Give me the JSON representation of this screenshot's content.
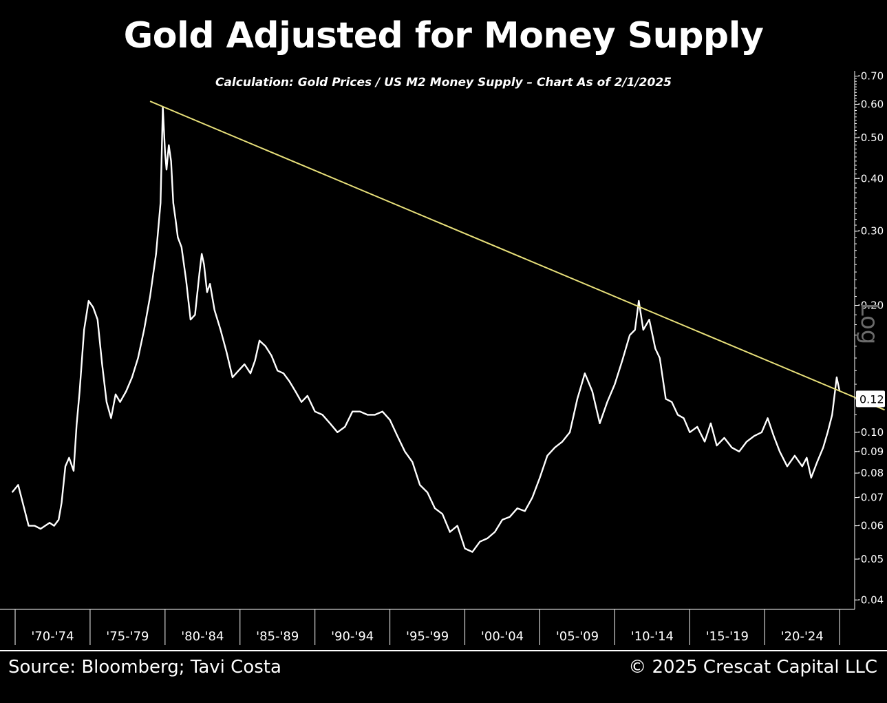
{
  "title": "Gold Adjusted for Money Supply",
  "subtitle": "Calculation: Gold Prices / US M2 Money Supply – Chart As of 2/1/2025",
  "footer": {
    "source": "Source: Bloomberg; Tavi Costa",
    "copyright": "© 2025 Crescat Capital LLC"
  },
  "colors": {
    "background": "#000000",
    "series": "#ffffff",
    "trendline": "#e8e07a"
  },
  "chart_data": {
    "type": "line",
    "title": "Gold Adjusted for Money Supply",
    "subtitle": "Calculation: Gold Prices / US M2 Money Supply – Chart As of 2/1/2025",
    "y_scale": "log",
    "y_scale_label": "Log",
    "ylim": [
      0.038,
      0.72
    ],
    "xlim": [
      1970.0,
      2026.0
    ],
    "y_ticks": [
      {
        "value": 0.04,
        "label": "0.04"
      },
      {
        "value": 0.05,
        "label": "0.05"
      },
      {
        "value": 0.06,
        "label": "0.06"
      },
      {
        "value": 0.07,
        "label": "0.07"
      },
      {
        "value": 0.08,
        "label": "0.08"
      },
      {
        "value": 0.09,
        "label": "0.09"
      },
      {
        "value": 0.1,
        "label": "0.10"
      },
      {
        "value": 0.2,
        "label": "0.20"
      },
      {
        "value": 0.3,
        "label": "0.30"
      },
      {
        "value": 0.4,
        "label": "0.40"
      },
      {
        "value": 0.5,
        "label": "0.50"
      },
      {
        "value": 0.6,
        "label": "0.60"
      },
      {
        "value": 0.7,
        "label": "0.70"
      }
    ],
    "x_groups": [
      {
        "label": "'70-'74",
        "start": 1970,
        "end": 1975
      },
      {
        "label": "'75-'79",
        "start": 1975,
        "end": 1980
      },
      {
        "label": "'80-'84",
        "start": 1980,
        "end": 1985
      },
      {
        "label": "'85-'89",
        "start": 1985,
        "end": 1990
      },
      {
        "label": "'90-'94",
        "start": 1990,
        "end": 1995
      },
      {
        "label": "'95-'99",
        "start": 1995,
        "end": 2000
      },
      {
        "label": "'00-'04",
        "start": 2000,
        "end": 2005
      },
      {
        "label": "'05-'09",
        "start": 2005,
        "end": 2010
      },
      {
        "label": "'10-'14",
        "start": 2010,
        "end": 2015
      },
      {
        "label": "'15-'19",
        "start": 2015,
        "end": 2020
      },
      {
        "label": "'20-'24",
        "start": 2020,
        "end": 2025
      }
    ],
    "current_value": {
      "value": 0.12,
      "label": "0.12"
    },
    "series": [
      {
        "x": [
          1969.8,
          1970.2,
          1970.6,
          1970.9,
          1971.3,
          1971.7,
          1972.0,
          1972.3,
          1972.6,
          1972.9,
          1973.1,
          1973.35,
          1973.6,
          1973.9,
          1974.1,
          1974.3,
          1974.6,
          1974.9,
          1975.2,
          1975.5,
          1975.8,
          1976.1,
          1976.4,
          1976.7,
          1977.0,
          1977.4,
          1977.8,
          1978.2,
          1978.6,
          1979.0,
          1979.4,
          1979.7,
          1979.85,
          1980.0,
          1980.1,
          1980.25,
          1980.4,
          1980.55,
          1980.7,
          1980.85,
          1981.1,
          1981.4,
          1981.7,
          1982.0,
          1982.3,
          1982.45,
          1982.6,
          1982.8,
          1983.0,
          1983.3,
          1983.7,
          1984.1,
          1984.5,
          1984.9,
          1985.3,
          1985.7,
          1986.0,
          1986.3,
          1986.7,
          1987.1,
          1987.5,
          1987.9,
          1988.3,
          1988.7,
          1989.1,
          1989.5,
          1990.0,
          1990.5,
          1991.0,
          1991.5,
          1992.0,
          1992.5,
          1993.0,
          1993.5,
          1994.0,
          1994.5,
          1995.0,
          1995.5,
          1996.0,
          1996.5,
          1997.0,
          1997.5,
          1998.0,
          1998.5,
          1999.0,
          1999.5,
          2000.0,
          2000.5,
          2001.0,
          2001.5,
          2002.0,
          2002.5,
          2003.0,
          2003.5,
          2004.0,
          2004.5,
          2005.0,
          2005.5,
          2006.0,
          2006.5,
          2007.0,
          2007.5,
          2008.0,
          2008.5,
          2009.0,
          2009.5,
          2010.0,
          2010.5,
          2011.0,
          2011.35,
          2011.6,
          2011.9,
          2012.3,
          2012.7,
          2013.0,
          2013.4,
          2013.8,
          2014.2,
          2014.6,
          2015.0,
          2015.5,
          2016.0,
          2016.4,
          2016.8,
          2017.3,
          2017.8,
          2018.3,
          2018.8,
          2019.3,
          2019.8,
          2020.2,
          2020.6,
          2021.0,
          2021.5,
          2022.0,
          2022.5,
          2022.8,
          2023.1,
          2023.5,
          2023.9,
          2024.2,
          2024.5,
          2024.8,
          2025.0
        ],
        "y": [
          0.072,
          0.075,
          0.066,
          0.06,
          0.06,
          0.059,
          0.06,
          0.061,
          0.06,
          0.062,
          0.068,
          0.083,
          0.087,
          0.081,
          0.104,
          0.125,
          0.175,
          0.205,
          0.198,
          0.185,
          0.145,
          0.118,
          0.108,
          0.123,
          0.118,
          0.125,
          0.135,
          0.15,
          0.175,
          0.21,
          0.265,
          0.35,
          0.59,
          0.46,
          0.42,
          0.48,
          0.44,
          0.35,
          0.32,
          0.29,
          0.275,
          0.23,
          0.185,
          0.19,
          0.24,
          0.265,
          0.25,
          0.215,
          0.225,
          0.195,
          0.175,
          0.155,
          0.135,
          0.14,
          0.145,
          0.138,
          0.148,
          0.165,
          0.16,
          0.152,
          0.14,
          0.138,
          0.132,
          0.125,
          0.118,
          0.122,
          0.112,
          0.11,
          0.105,
          0.1,
          0.103,
          0.112,
          0.112,
          0.11,
          0.11,
          0.112,
          0.107,
          0.098,
          0.09,
          0.085,
          0.075,
          0.072,
          0.066,
          0.064,
          0.058,
          0.06,
          0.053,
          0.052,
          0.055,
          0.056,
          0.058,
          0.062,
          0.063,
          0.066,
          0.065,
          0.07,
          0.078,
          0.088,
          0.092,
          0.095,
          0.1,
          0.12,
          0.138,
          0.125,
          0.105,
          0.118,
          0.13,
          0.148,
          0.17,
          0.175,
          0.205,
          0.175,
          0.185,
          0.158,
          0.15,
          0.12,
          0.118,
          0.11,
          0.108,
          0.1,
          0.103,
          0.095,
          0.105,
          0.093,
          0.097,
          0.092,
          0.09,
          0.095,
          0.098,
          0.1,
          0.108,
          0.098,
          0.09,
          0.083,
          0.088,
          0.083,
          0.087,
          0.078,
          0.085,
          0.092,
          0.1,
          0.11,
          0.135,
          0.125
        ]
      }
    ],
    "trendline": {
      "x": [
        1979.0,
        2028.0
      ],
      "y": [
        0.61,
        0.113
      ]
    }
  }
}
